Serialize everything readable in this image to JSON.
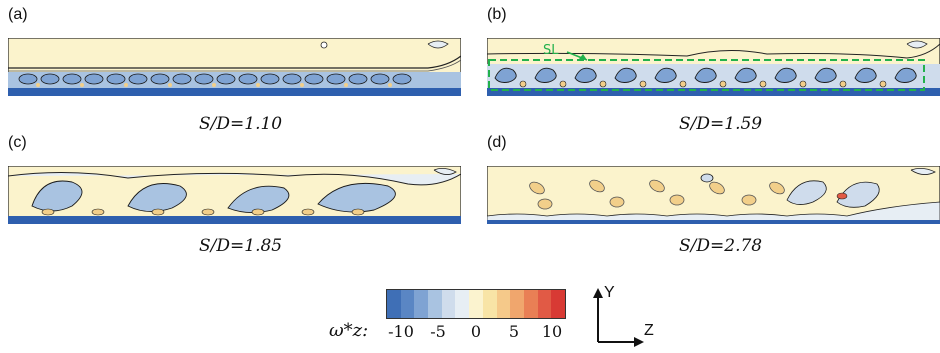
{
  "panels": [
    {
      "label": "(a)",
      "caption": "S/D=1.10"
    },
    {
      "label": "(b)",
      "caption": "S/D=1.59",
      "annotation": "SL"
    },
    {
      "label": "(c)",
      "caption": "S/D=1.85"
    },
    {
      "label": "(d)",
      "caption": "S/D=2.78"
    }
  ],
  "colorbar": {
    "title": "ω*z:",
    "ticks": [
      "-10",
      "-5",
      "0",
      "5",
      "10"
    ],
    "colors": [
      "#3f6fb6",
      "#5a86c4",
      "#7fa3d3",
      "#a9c3e1",
      "#cfdcec",
      "#e7eef4",
      "#fbf3cf",
      "#f8e4a6",
      "#f5c98a",
      "#f0a66d",
      "#e97f55",
      "#e15a45",
      "#d83a34"
    ]
  },
  "axes": {
    "y": "Y",
    "z": "Z"
  },
  "colors": {
    "background_flow": "#fbf3cc",
    "wall": "#2e5fae",
    "negative": "#8fb3dc",
    "positive": "#f2cf8a",
    "highlight": "#22b14c"
  }
}
